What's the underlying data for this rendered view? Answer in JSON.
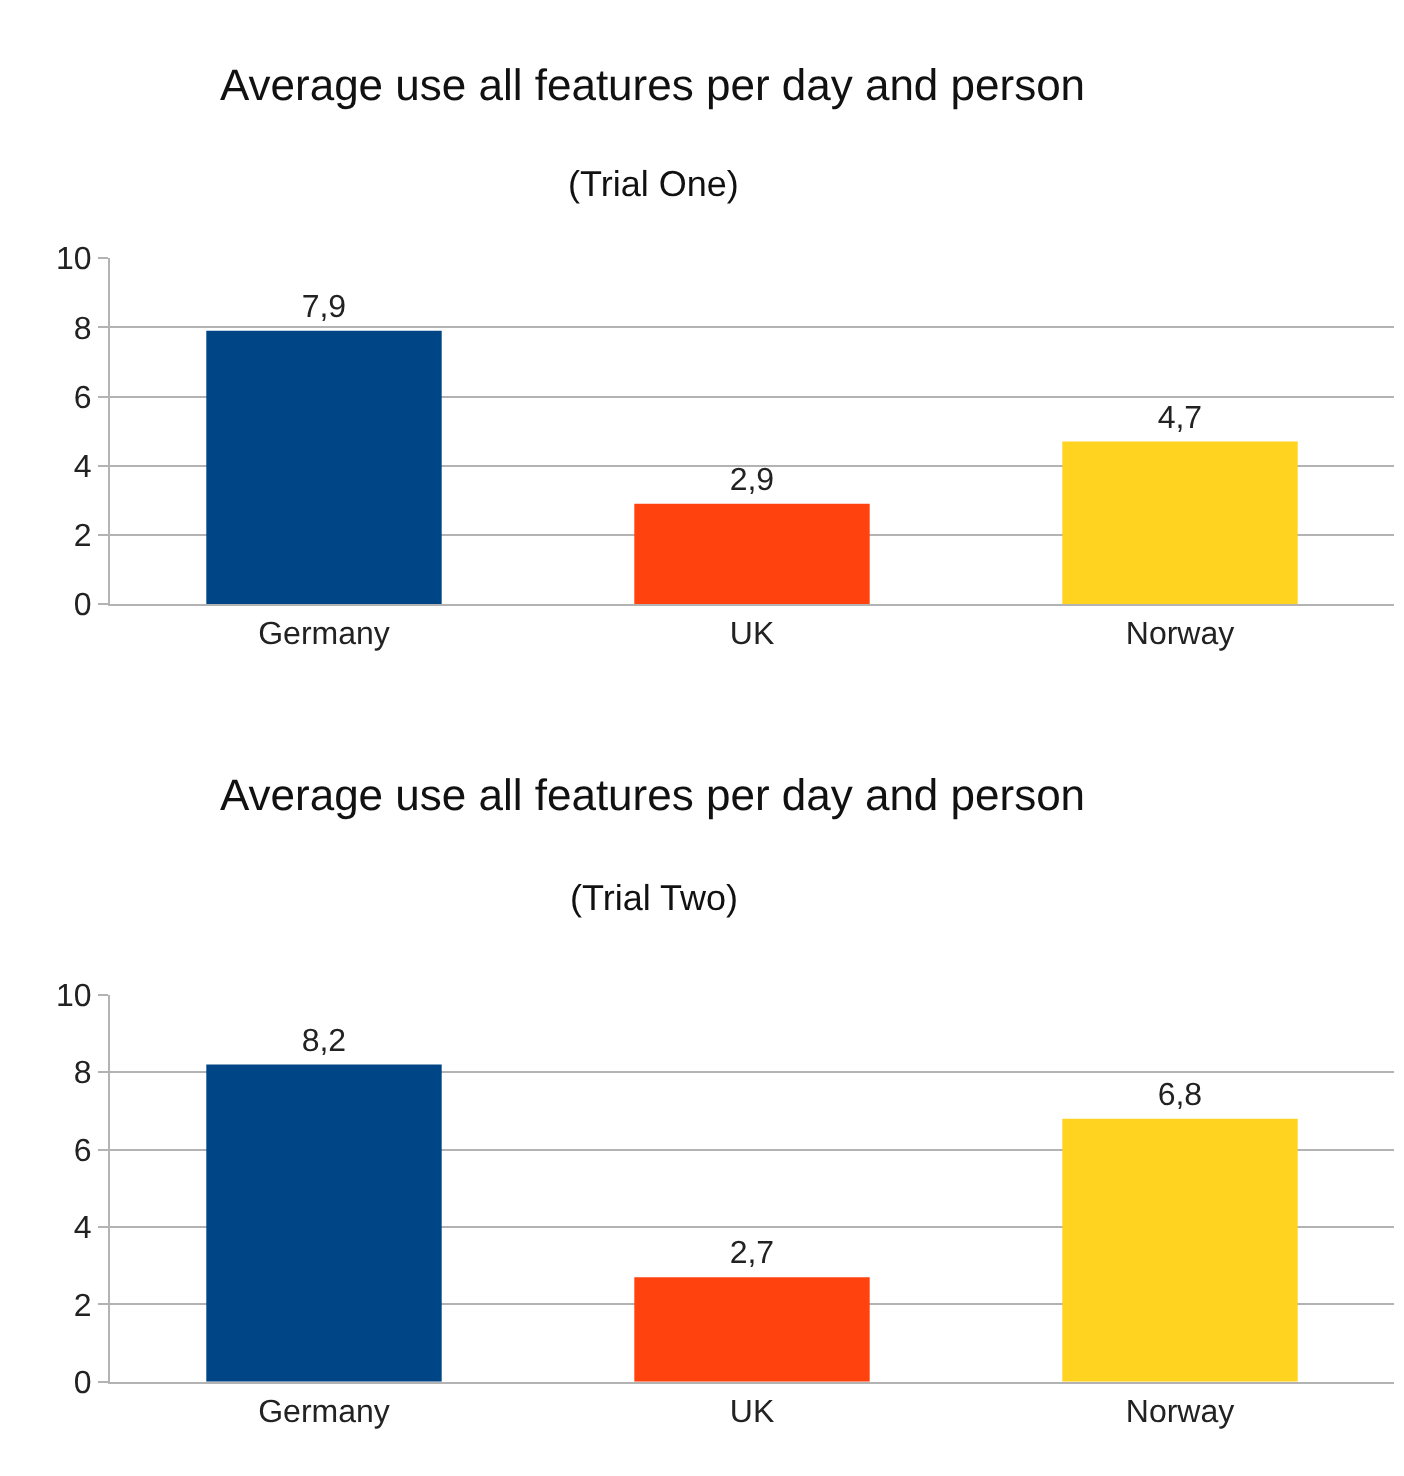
{
  "chart_data": [
    {
      "type": "bar",
      "title": "Average use all features per day and person",
      "subtitle": "(Trial One)",
      "categories": [
        "Germany",
        "UK",
        "Norway"
      ],
      "values": [
        7.9,
        2.9,
        4.7
      ],
      "value_labels": [
        "7,9",
        "2,9",
        "4,7"
      ],
      "colors": [
        "#004586",
        "#ff420e",
        "#ffd320"
      ],
      "ylim": [
        0,
        10
      ],
      "yticks": [
        0,
        2,
        4,
        6,
        8,
        10
      ],
      "grid": "y"
    },
    {
      "type": "bar",
      "title": "Average use all features per day and person",
      "subtitle": "(Trial Two)",
      "categories": [
        "Germany",
        "UK",
        "Norway"
      ],
      "values": [
        8.2,
        2.7,
        6.8
      ],
      "value_labels": [
        "8,2",
        "2,7",
        "6,8"
      ],
      "colors": [
        "#004586",
        "#ff420e",
        "#ffd320"
      ],
      "ylim": [
        0,
        10
      ],
      "yticks": [
        0,
        2,
        4,
        6,
        8,
        10
      ],
      "grid": "y"
    }
  ]
}
